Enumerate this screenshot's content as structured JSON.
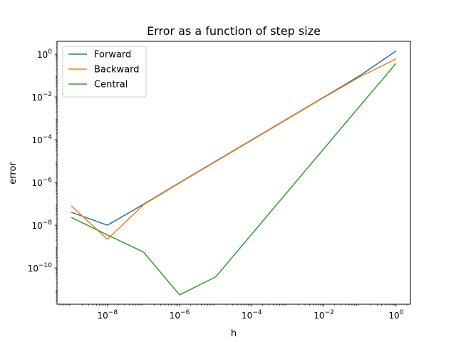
{
  "chart_data": {
    "type": "line",
    "title": "Error as a function of step size",
    "xlabel": "h",
    "ylabel": "error",
    "xscale": "log",
    "yscale": "log",
    "xlim": [
      4e-10,
      2.5
    ],
    "ylim": [
      2e-12,
      4.0
    ],
    "x": [
      1e-09,
      1e-08,
      1e-07,
      1e-06,
      1e-05,
      0.0001,
      0.001,
      0.01,
      0.1,
      1
    ],
    "xticks": [
      {
        "base": "10",
        "exp": "−8",
        "value": 1e-08
      },
      {
        "base": "10",
        "exp": "−6",
        "value": 1e-06
      },
      {
        "base": "10",
        "exp": "−4",
        "value": 0.0001
      },
      {
        "base": "10",
        "exp": "−2",
        "value": 0.01
      },
      {
        "base": "10",
        "exp": "0",
        "value": 1
      }
    ],
    "yticks": [
      {
        "base": "10",
        "exp": "−10",
        "value": 1e-10
      },
      {
        "base": "10",
        "exp": "−8",
        "value": 1e-08
      },
      {
        "base": "10",
        "exp": "−6",
        "value": 1e-06
      },
      {
        "base": "10",
        "exp": "−4",
        "value": 0.0001
      },
      {
        "base": "10",
        "exp": "−2",
        "value": 0.01
      },
      {
        "base": "10",
        "exp": "0",
        "value": 1
      }
    ],
    "series": [
      {
        "name": "Forward",
        "color": "#1f77b4",
        "values": [
          4e-08,
          1e-08,
          9.5e-08,
          9.8e-07,
          9.8e-06,
          9.8e-05,
          0.00098,
          0.0098,
          0.1,
          1.4
        ]
      },
      {
        "name": "Backward",
        "color": "#ff7f0e",
        "values": [
          8e-08,
          2.2e-09,
          9e-08,
          9.4e-07,
          9.4e-06,
          9.4e-05,
          0.00094,
          0.0094,
          0.088,
          0.6
        ]
      },
      {
        "name": "Central",
        "color": "#2ca02c",
        "values": [
          2.3e-08,
          3.5e-09,
          5.5e-10,
          5.5e-12,
          3.8e-11,
          3.8e-09,
          3.8e-07,
          3.8e-05,
          0.0038,
          0.37
        ]
      }
    ],
    "legend": "upper-left",
    "grid": false
  }
}
